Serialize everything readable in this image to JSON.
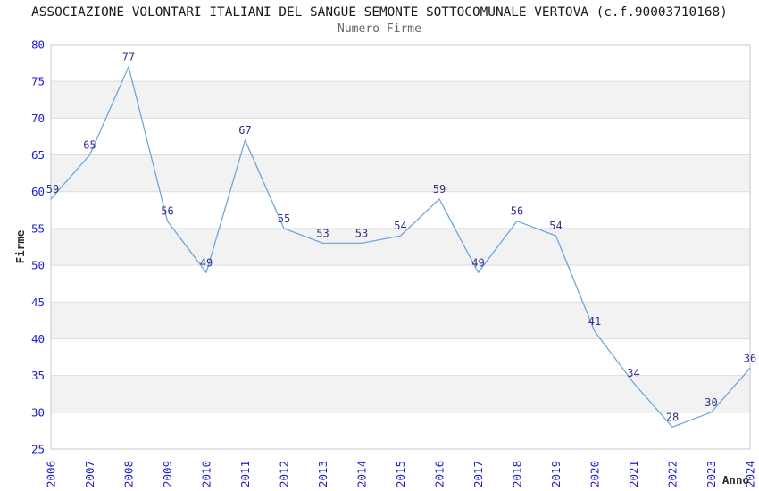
{
  "chart_data": {
    "type": "line",
    "title": "ASSOCIAZIONE VOLONTARI ITALIANI DEL SANGUE SEMONTE SOTTOCOMUNALE VERTOVA (c.f.90003710168)",
    "subtitle": "Numero Firme",
    "xlabel": "Anno",
    "ylabel": "Firme",
    "categories": [
      "2006",
      "2007",
      "2008",
      "2009",
      "2010",
      "2011",
      "2012",
      "2013",
      "2014",
      "2015",
      "2016",
      "2017",
      "2018",
      "2019",
      "2020",
      "2021",
      "2022",
      "2023",
      "2024"
    ],
    "values": [
      59,
      65,
      77,
      56,
      49,
      67,
      55,
      53,
      53,
      54,
      59,
      49,
      56,
      54,
      41,
      34,
      28,
      30,
      36
    ],
    "ylim": [
      25,
      80
    ],
    "ytick_step": 5,
    "grid": true,
    "legend_position": "none",
    "data_labels_visible": true,
    "colors": {
      "line": "#6ea7de",
      "axis_tick_label": "#2222cc",
      "data_label": "#333388",
      "band_alt": "#f2f2f2",
      "band_main": "#ffffff",
      "grid_line": "#dddddd",
      "plot_border": "#c8c8c8",
      "title": "#1a1a1a",
      "subtitle": "#666666",
      "axis_title": "#2b2b2b"
    }
  }
}
